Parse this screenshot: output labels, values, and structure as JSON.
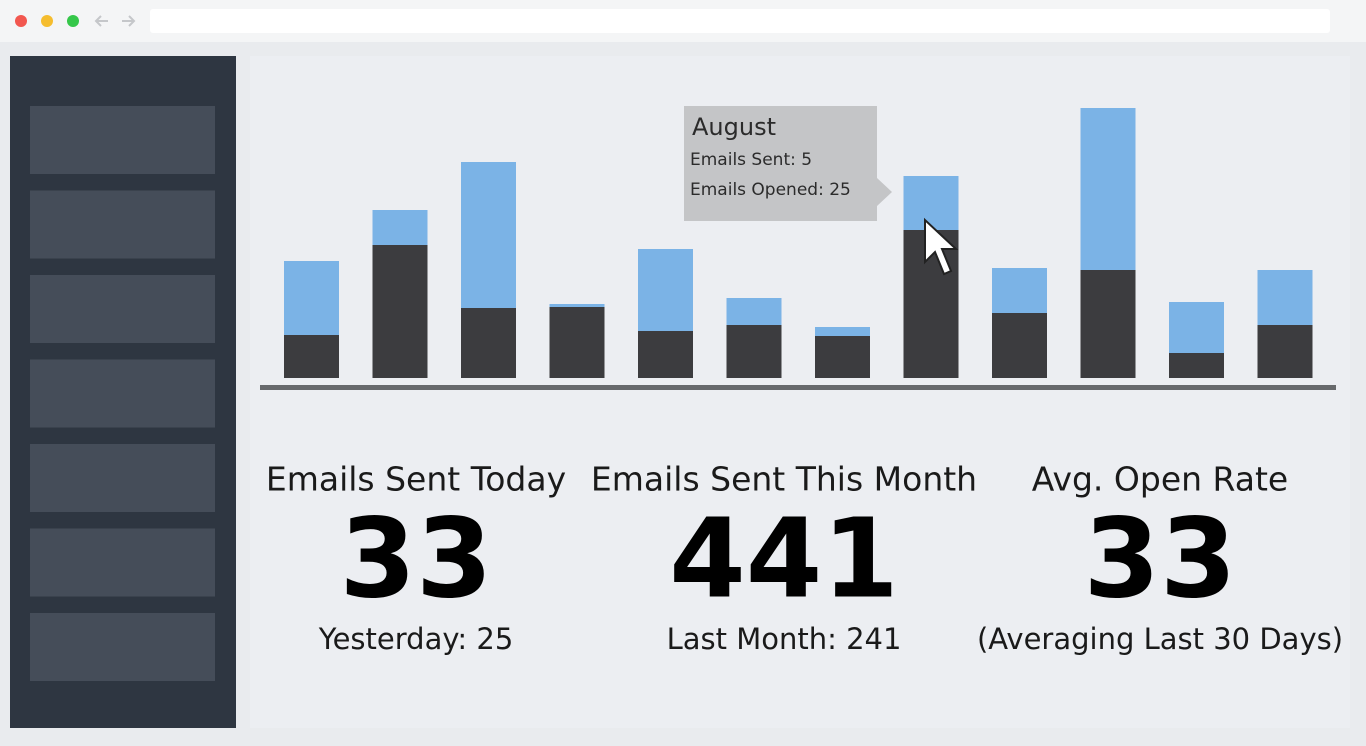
{
  "chart_data": {
    "type": "bar",
    "stacked": true,
    "categories": [
      null,
      null,
      null,
      null,
      null,
      null,
      null,
      null,
      null,
      null,
      null,
      null
    ],
    "series": [
      {
        "color": "#3c3c3f",
        "values": [
          43,
          133,
          70,
          71,
          47,
          53,
          42,
          148,
          65,
          108,
          25,
          53
        ]
      },
      {
        "color": "#7bb3e6",
        "values": [
          74,
          35,
          146,
          3,
          82,
          27,
          9,
          54,
          45,
          162,
          51,
          55
        ]
      }
    ],
    "ylim": [
      0,
      280
    ],
    "tooltip": {
      "title": "August",
      "lines": [
        "Emails Sent: 5",
        "Emails Opened: 25"
      ]
    }
  },
  "stats": [
    {
      "title": "Emails Sent Today",
      "value": 33,
      "note": "Yesterday: 25"
    },
    {
      "title": "Emails Sent This Month",
      "value": 441,
      "note": "Last Month: 241"
    },
    {
      "title": "Avg. Open Rate",
      "value": 33,
      "note": "(Averaging Last 30 Days)"
    }
  ]
}
